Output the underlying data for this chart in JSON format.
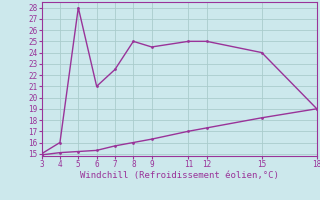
{
  "upper_x": [
    3,
    4,
    5,
    6,
    7,
    8,
    9,
    11,
    12,
    15,
    18
  ],
  "upper_y": [
    15,
    16,
    28,
    21,
    22.5,
    25,
    24.5,
    25,
    25,
    24,
    19
  ],
  "lower_x": [
    3,
    4,
    5,
    6,
    7,
    8,
    9,
    11,
    12,
    15,
    18
  ],
  "lower_y": [
    14.9,
    15.1,
    15.2,
    15.3,
    15.7,
    16.0,
    16.3,
    17.0,
    17.3,
    18.2,
    19
  ],
  "line_color": "#993399",
  "bg_color": "#cce8ec",
  "grid_color": "#aacccc",
  "xlabel": "Windchill (Refroidissement éolien,°C)",
  "ylim_min": 14.8,
  "ylim_max": 28.5,
  "xlim_min": 3,
  "xlim_max": 18,
  "xticks": [
    3,
    4,
    5,
    6,
    7,
    8,
    9,
    11,
    12,
    15,
    18
  ],
  "yticks": [
    15,
    16,
    17,
    18,
    19,
    20,
    21,
    22,
    23,
    24,
    25,
    26,
    27,
    28
  ],
  "tick_fontsize": 5.5,
  "xlabel_fontsize": 6.5
}
